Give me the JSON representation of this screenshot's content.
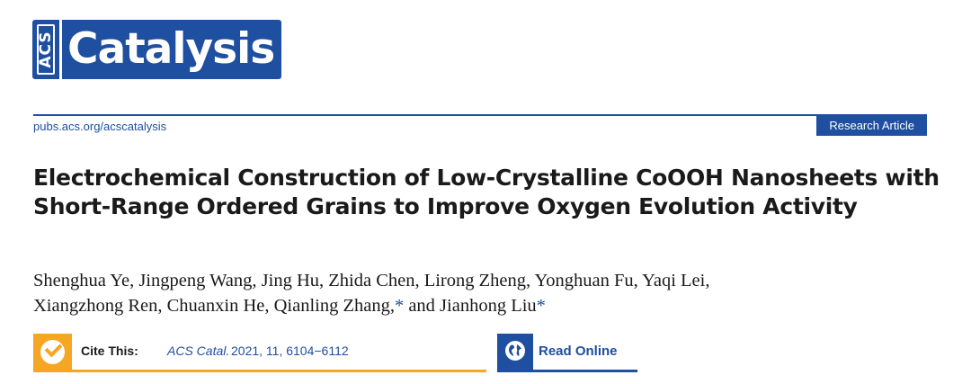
{
  "logo": {
    "acs_text": "ACS",
    "journal_text": "Catalysis"
  },
  "header": {
    "site_url": "pubs.acs.org/acscatalysis",
    "article_type": "Research Article"
  },
  "article": {
    "title": "Electrochemical Construction of Low-Crystalline CoOOH Nanosheets with Short-Range Ordered Grains to Improve Oxygen Evolution Activity",
    "authors_line1": "Shenghua Ye, Jingpeng Wang, Jing Hu, Zhida Chen, Lirong Zheng, Yonghuan Fu, Yaqi Lei,",
    "authors_line2_a": "Xiangzhong Ren, Chuanxin He, Qianling Zhang,",
    "authors_line2_b": " and Jianhong Liu",
    "corresponding_mark": "*"
  },
  "citation": {
    "label": "Cite This:",
    "journal": "ACS Catal.",
    "details": "2021, 11, 6104−6112"
  },
  "read_online": {
    "label": "Read Online"
  },
  "colors": {
    "brand_blue": "#1e4fa0",
    "accent_orange": "#f5a623"
  },
  "icons": {
    "cite": "check-circle-icon",
    "read": "globe-icon"
  }
}
